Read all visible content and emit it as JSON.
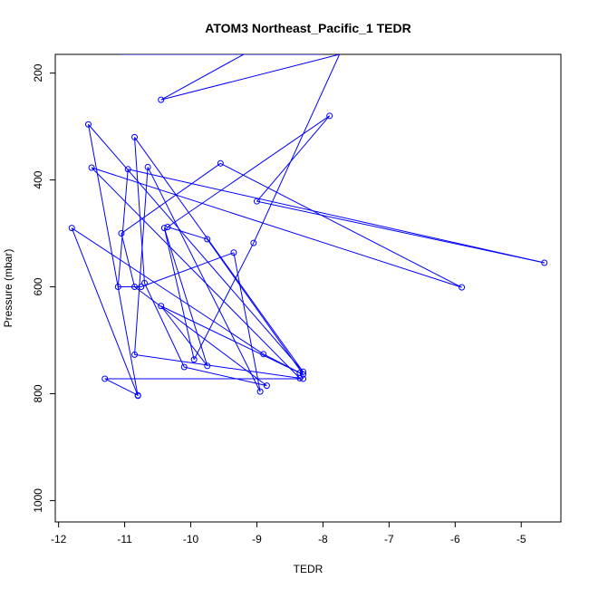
{
  "chart_data": {
    "type": "line",
    "title": "ATOM3 Northeast_Pacific_1 TEDR",
    "xlabel": "TEDR",
    "ylabel": "Pressure (mbar)",
    "xlim": [
      -12.05,
      -4.4
    ],
    "ylim": [
      1040,
      165
    ],
    "y_reversed": true,
    "xticks": [
      -12,
      -11,
      -10,
      -9,
      -8,
      -7,
      -6,
      -5
    ],
    "yticks": [
      200,
      400,
      600,
      800,
      1000
    ],
    "grid": false,
    "color": "#0000ff",
    "series": [
      {
        "x": [
          -10.8,
          -11.3,
          -8.3,
          -8.35,
          -8.9,
          -11.8,
          -10.8,
          -11.55,
          -8.3,
          -10.85,
          -10.7,
          -10.1,
          -8.85,
          -10.85,
          -11.05,
          -9.55,
          -5.9,
          -11.5,
          -8.35,
          -10.85,
          -10.65,
          -8.95,
          -9.35,
          -10.75,
          -11.1,
          -10.95,
          -4.65,
          -9.0,
          -7.9,
          -10.35,
          -9.75,
          -8.3,
          -10.45,
          -9.75,
          -10.4,
          -9.95,
          -9.05,
          -7.75,
          -10.45,
          -9.2,
          -10.85,
          -8.9,
          -11.05,
          -8.0
        ],
        "y": [
          803,
          772,
          772,
          761,
          726,
          490,
          804,
          296,
          759,
          320,
          593,
          750,
          785,
          600,
          500,
          369,
          601,
          377,
          771,
          727,
          376,
          796,
          536,
          600,
          600,
          380,
          555,
          440,
          280,
          488,
          511,
          764,
          636,
          748,
          490,
          736,
          518,
          165,
          250,
          165,
          165,
          165,
          165,
          165
        ]
      }
    ]
  }
}
